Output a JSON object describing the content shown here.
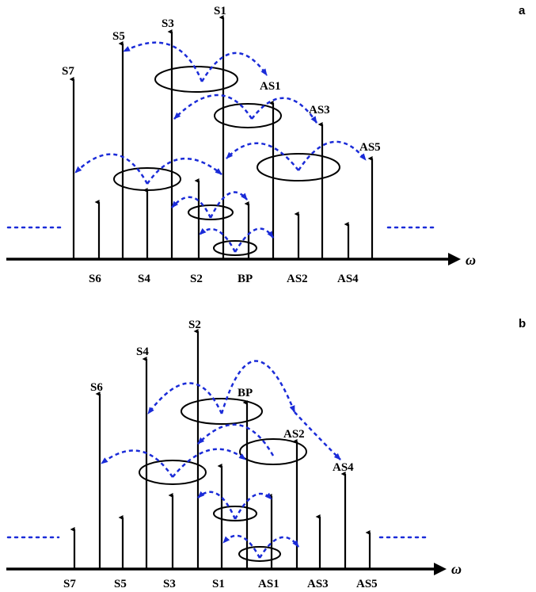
{
  "panels": [
    {
      "letter": "a",
      "omega": "ω",
      "above_labels": [
        "S7",
        "S5",
        "S3",
        "S1",
        "AS1",
        "AS3",
        "AS5"
      ],
      "below_labels": [
        "S6",
        "S4",
        "S2",
        "BP",
        "AS2",
        "AS4"
      ]
    },
    {
      "letter": "b",
      "omega": "ω",
      "above_labels": [
        "S6",
        "S4",
        "S2",
        "BP",
        "AS2",
        "AS4"
      ],
      "below_labels": [
        "S7",
        "S5",
        "S3",
        "S1",
        "AS1",
        "AS3",
        "AS5"
      ]
    }
  ],
  "colors": {
    "arrows": "#000000",
    "coupling": "#1a2bd8"
  }
}
